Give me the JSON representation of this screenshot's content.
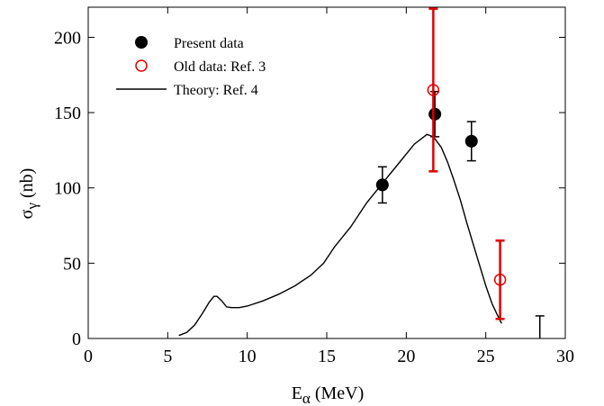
{
  "chart_data": {
    "type": "scatter",
    "xlim": [
      0,
      30
    ],
    "ylim": [
      0,
      220
    ],
    "x_ticks": [
      "0",
      "5",
      "10",
      "15",
      "20",
      "25",
      "30"
    ],
    "y_ticks": [
      "0",
      "50",
      "100",
      "150",
      "200"
    ],
    "xlabel": {
      "main": "E",
      "sub": "α",
      "unit": " (MeV)"
    },
    "ylabel": {
      "main": "σ",
      "sub": "γ",
      "unit": " (nb)"
    },
    "grid": false,
    "legend_position": "top-left",
    "series": [
      {
        "name": "Present data",
        "kind": "filled-circle",
        "color": "#000000",
        "points": [
          {
            "x": 18.5,
            "y": 102,
            "err": 12
          },
          {
            "x": 21.8,
            "y": 149,
            "err": 15
          },
          {
            "x": 24.1,
            "y": 131,
            "err": 13
          }
        ]
      },
      {
        "name": "Old data: Ref. 3",
        "kind": "open-circle",
        "color": "#e00000",
        "points": [
          {
            "x": 21.7,
            "y": 165,
            "err_lo": 54,
            "err_hi": 54
          },
          {
            "x": 25.9,
            "y": 39,
            "err_lo": 26,
            "err_hi": 26
          }
        ]
      },
      {
        "name": "Theory: Ref. 4",
        "kind": "line",
        "color": "#000000",
        "points": [
          [
            5.7,
            2
          ],
          [
            6.2,
            4
          ],
          [
            6.7,
            9
          ],
          [
            7.2,
            17
          ],
          [
            7.6,
            24
          ],
          [
            7.9,
            28
          ],
          [
            8.1,
            28
          ],
          [
            8.4,
            25
          ],
          [
            8.7,
            21
          ],
          [
            9.0,
            20.5
          ],
          [
            9.5,
            20.5
          ],
          [
            10.0,
            21.5
          ],
          [
            11.0,
            25
          ],
          [
            12.0,
            29.5
          ],
          [
            13.0,
            35
          ],
          [
            14.0,
            42
          ],
          [
            14.8,
            50
          ],
          [
            15.5,
            61
          ],
          [
            16.5,
            74
          ],
          [
            17.5,
            90
          ],
          [
            18.5,
            103
          ],
          [
            19.5,
            116
          ],
          [
            20.5,
            129
          ],
          [
            21.3,
            135.5
          ],
          [
            21.7,
            134
          ],
          [
            22.2,
            127
          ],
          [
            22.6,
            117
          ],
          [
            23.0,
            105
          ],
          [
            23.4,
            92
          ],
          [
            23.8,
            77
          ],
          [
            24.2,
            63
          ],
          [
            24.6,
            49
          ],
          [
            25.0,
            35
          ],
          [
            25.4,
            23
          ],
          [
            25.8,
            14
          ],
          [
            26.0,
            10
          ]
        ]
      },
      {
        "name": "",
        "kind": "upper-limit",
        "color": "#000000",
        "points": [
          {
            "x": 28.4,
            "y": 0,
            "y_top": 15
          }
        ]
      }
    ]
  }
}
